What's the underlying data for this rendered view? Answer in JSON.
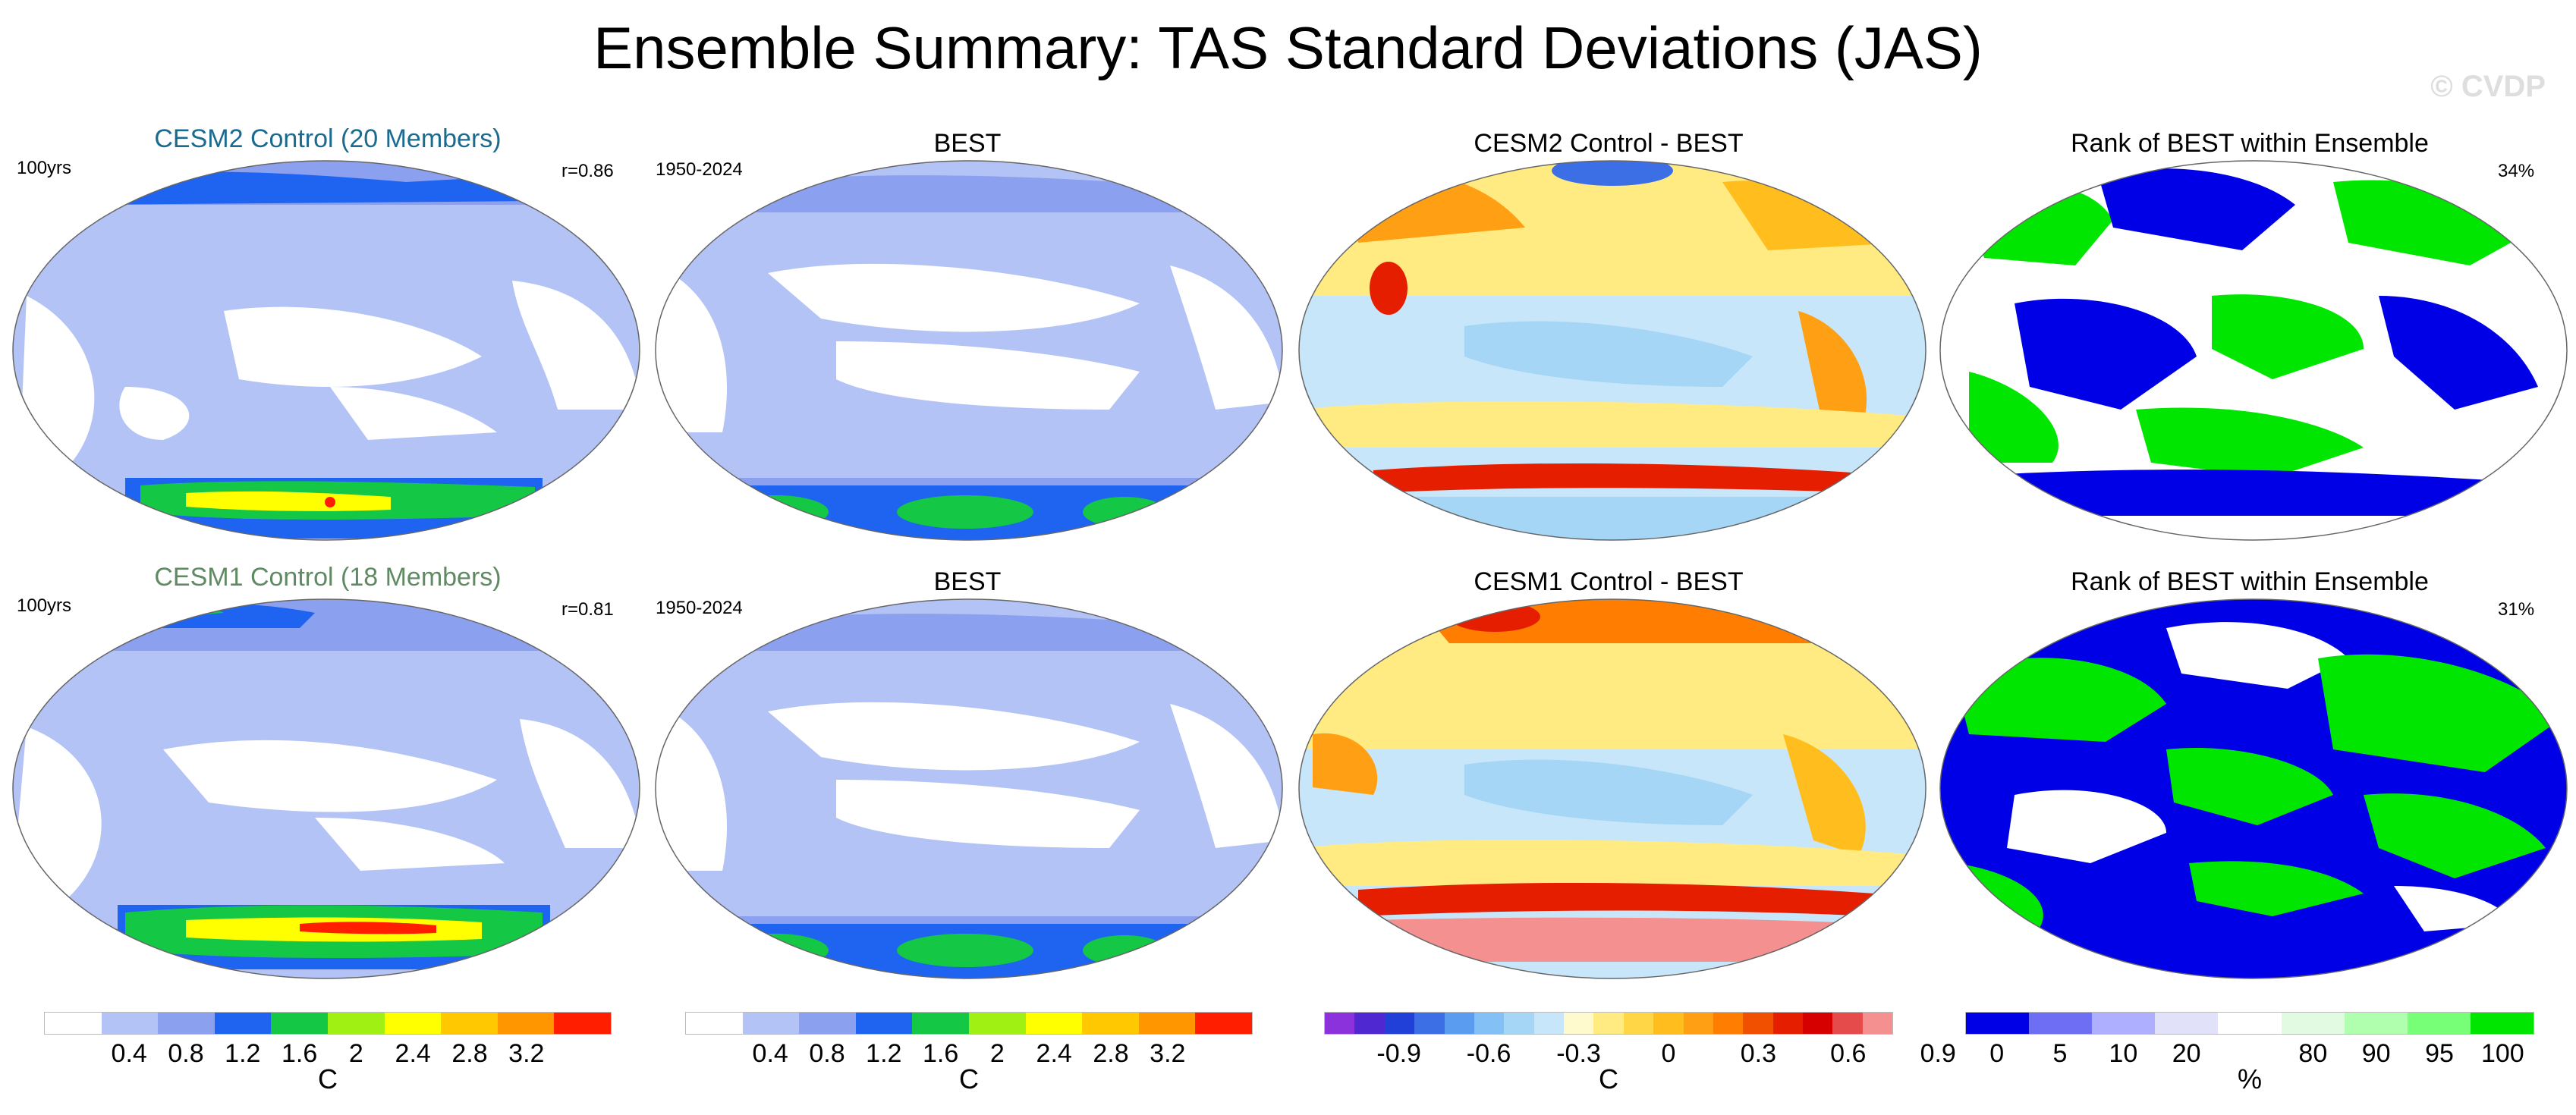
{
  "main_title": "Ensemble Summary: TAS Standard Deviations (JAS)",
  "watermark": "© CVDP",
  "chart_data": [
    {
      "type": "heatmap",
      "title": "CESM2 Control (20 Members)",
      "title_color": "#1a6b8f",
      "left_label": "100yrs",
      "right_label": "r=0.86",
      "units": "C"
    },
    {
      "type": "heatmap",
      "title": "BEST",
      "left_label": "1950-2024",
      "units": "C"
    },
    {
      "type": "heatmap",
      "title": "CESM2 Control - BEST",
      "units": "C"
    },
    {
      "type": "heatmap",
      "title": "Rank of BEST within Ensemble",
      "right_label": "34%",
      "units": "%"
    },
    {
      "type": "heatmap",
      "title": "CESM1 Control (18 Members)",
      "title_color": "#5f8a63",
      "left_label": "100yrs",
      "right_label": "r=0.81",
      "units": "C"
    },
    {
      "type": "heatmap",
      "title": "BEST",
      "left_label": "1950-2024",
      "units": "C"
    },
    {
      "type": "heatmap",
      "title": "CESM1 Control - BEST",
      "units": "C"
    },
    {
      "type": "heatmap",
      "title": "Rank of BEST within Ensemble",
      "right_label": "31%",
      "units": "%"
    }
  ],
  "colorbars": [
    {
      "name": "std",
      "units": "C",
      "colors": [
        "#ffffff",
        "#b4c3f5",
        "#8ca0f0",
        "#1e64f0",
        "#14c846",
        "#a0f014",
        "#ffff00",
        "#ffc800",
        "#ff9600",
        "#ff1e00"
      ],
      "ticks": [
        "0.4",
        "0.8",
        "1.2",
        "1.6",
        "2",
        "2.4",
        "2.8",
        "3.2"
      ]
    },
    {
      "name": "std",
      "units": "C",
      "colors": [
        "#ffffff",
        "#b4c3f5",
        "#8ca0f0",
        "#1e64f0",
        "#14c846",
        "#a0f014",
        "#ffff00",
        "#ffc800",
        "#ff9600",
        "#ff1e00"
      ],
      "ticks": [
        "0.4",
        "0.8",
        "1.2",
        "1.6",
        "2",
        "2.4",
        "2.8",
        "3.2"
      ]
    },
    {
      "name": "diff",
      "units": "C",
      "colors": [
        "#8c32dc",
        "#5028d2",
        "#2040d8",
        "#3c6ee6",
        "#5a9cf0",
        "#82c0f5",
        "#a5d6f5",
        "#c8e6fa",
        "#fffacd",
        "#ffeb82",
        "#ffd746",
        "#ffbe1e",
        "#ffa014",
        "#ff7d00",
        "#f05000",
        "#e61e00",
        "#d70000",
        "#e64b4b",
        "#f59090"
      ],
      "ticks": [
        "-0.9",
        "-0.6",
        "-0.3",
        "0",
        "0.3",
        "0.6",
        "0.9"
      ]
    },
    {
      "name": "rank",
      "units": "%",
      "colors": [
        "#0000e6",
        "#6e6ef5",
        "#afafff",
        "#e1e1fa",
        "#ffffff",
        "#e1fae1",
        "#afffaf",
        "#78ff78",
        "#00e600"
      ],
      "ticks": [
        "0",
        "5",
        "10",
        "20",
        "80",
        "90",
        "95",
        "100"
      ]
    }
  ]
}
